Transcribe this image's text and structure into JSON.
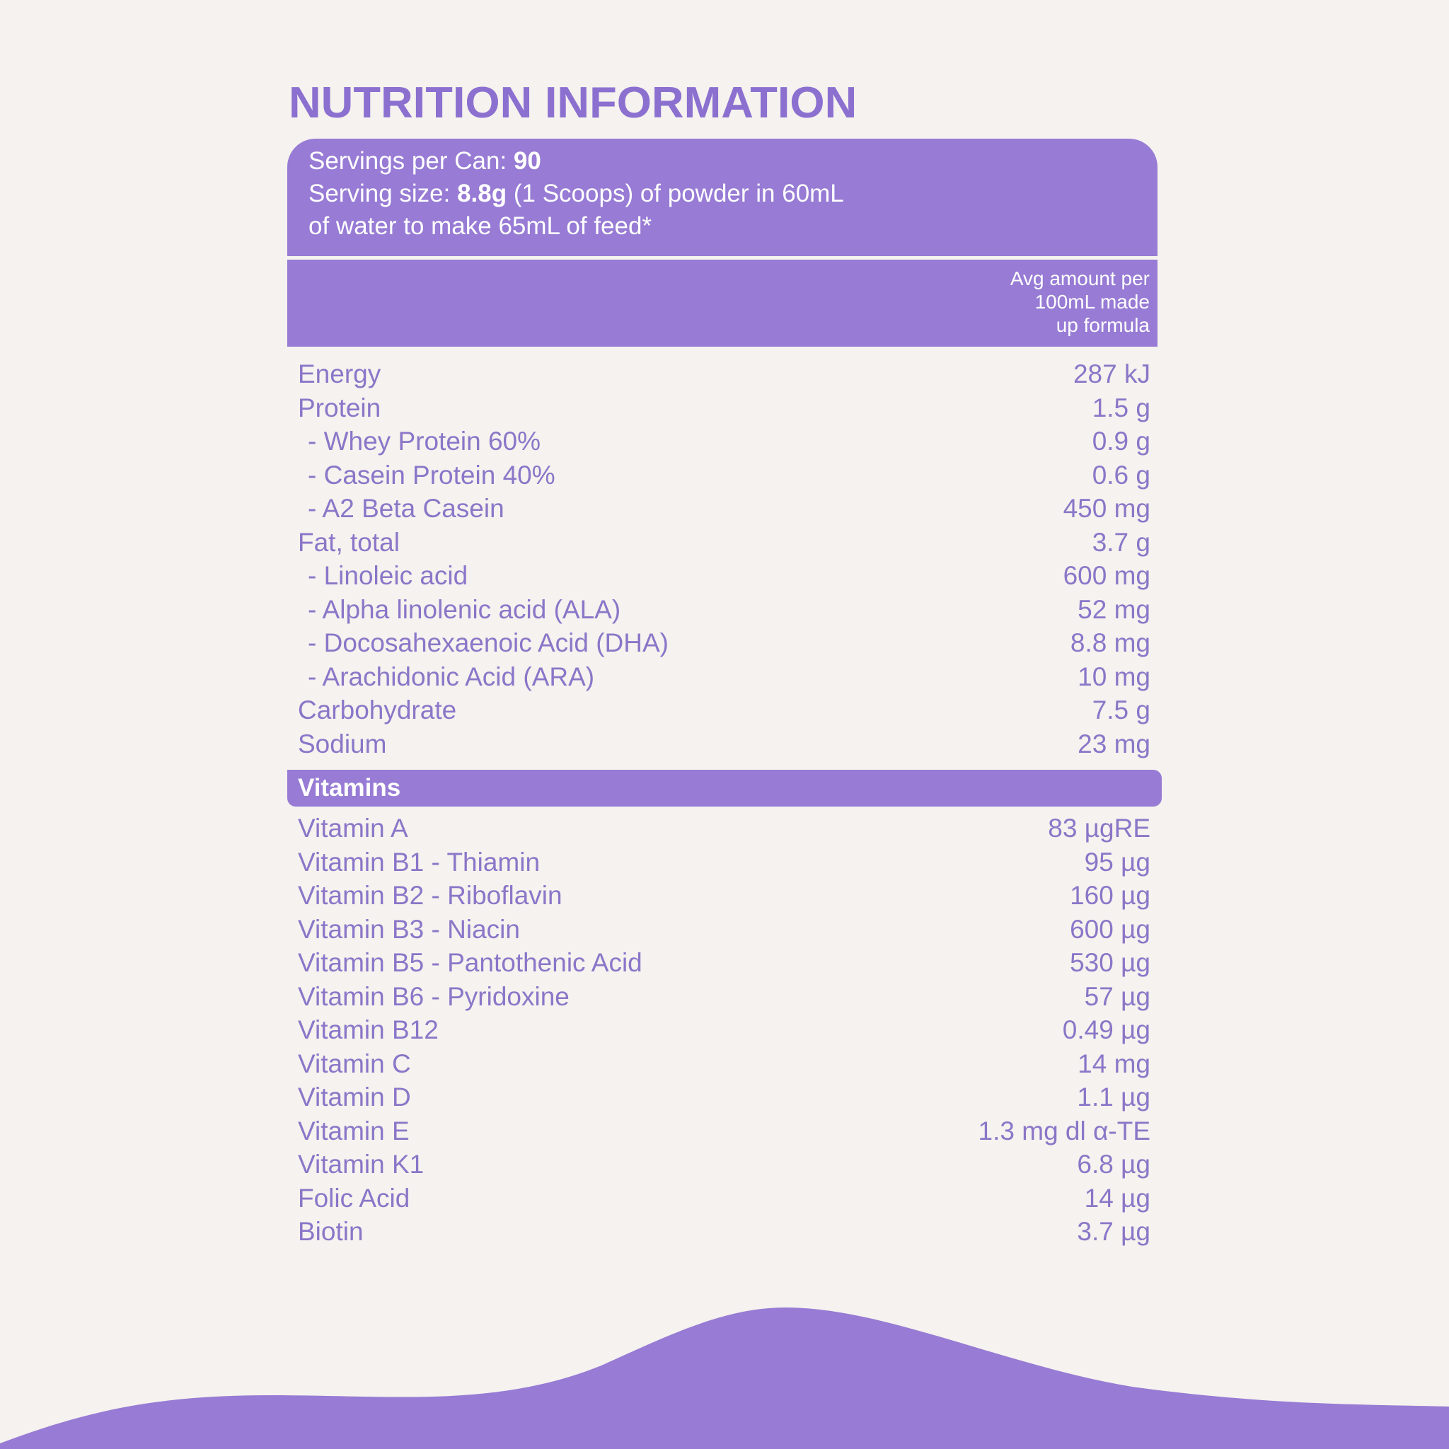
{
  "title": "NUTRITION INFORMATION",
  "serving": {
    "servings_label": "Servings per Can: ",
    "servings_value": "90",
    "size_label": "Serving size: ",
    "size_value": "8.8g",
    "size_rest": " (1 Scoops) of powder in 60mL",
    "line3": "of water to make 65mL of feed*"
  },
  "column_header": [
    "Avg amount per",
    "100mL made",
    "up formula"
  ],
  "nutrients": [
    {
      "label": "Energy",
      "value": "287 kJ",
      "sub": false
    },
    {
      "label": "Protein",
      "value": "1.5 g",
      "sub": false
    },
    {
      "label": "- Whey Protein 60%",
      "value": "0.9 g",
      "sub": true
    },
    {
      "label": "- Casein Protein 40%",
      "value": "0.6 g",
      "sub": true
    },
    {
      "label": "- A2 Beta Casein",
      "value": "450 mg",
      "sub": true
    },
    {
      "label": "Fat, total",
      "value": "3.7 g",
      "sub": false
    },
    {
      "label": "- Linoleic acid",
      "value": "600 mg",
      "sub": true
    },
    {
      "label": "- Alpha linolenic acid (ALA)",
      "value": "52 mg",
      "sub": true
    },
    {
      "label": "- Docosahexaenoic Acid (DHA)",
      "value": "8.8 mg",
      "sub": true
    },
    {
      "label": "- Arachidonic Acid (ARA)",
      "value": "10 mg",
      "sub": true
    },
    {
      "label": "Carbohydrate",
      "value": "7.5 g",
      "sub": false
    },
    {
      "label": "Sodium",
      "value": "23 mg",
      "sub": false
    }
  ],
  "vitamins_heading": "Vitamins",
  "vitamins": [
    {
      "label": "Vitamin A",
      "value": "83 µgRE"
    },
    {
      "label": "Vitamin B1 - Thiamin",
      "value": "95 µg"
    },
    {
      "label": "Vitamin B2 - Riboflavin",
      "value": "160 µg"
    },
    {
      "label": "Vitamin B3 - Niacin",
      "value": "600 µg"
    },
    {
      "label": "Vitamin B5 - Pantothenic Acid",
      "value": "530 µg"
    },
    {
      "label": "Vitamin B6 - Pyridoxine",
      "value": "57 µg"
    },
    {
      "label": "Vitamin B12",
      "value": "0.49 µg"
    },
    {
      "label": "Vitamin C",
      "value": "14 mg"
    },
    {
      "label": "Vitamin D",
      "value": "1.1 µg"
    },
    {
      "label": "Vitamin E",
      "value": "1.3 mg dl α-TE"
    },
    {
      "label": "Vitamin K1",
      "value": "6.8 µg"
    },
    {
      "label": "Folic Acid",
      "value": "14 µg"
    },
    {
      "label": "Biotin",
      "value": "3.7 µg"
    }
  ],
  "colors": {
    "accent": "#977bd4",
    "text": "#8b76c8",
    "background": "#f5f2ef"
  }
}
